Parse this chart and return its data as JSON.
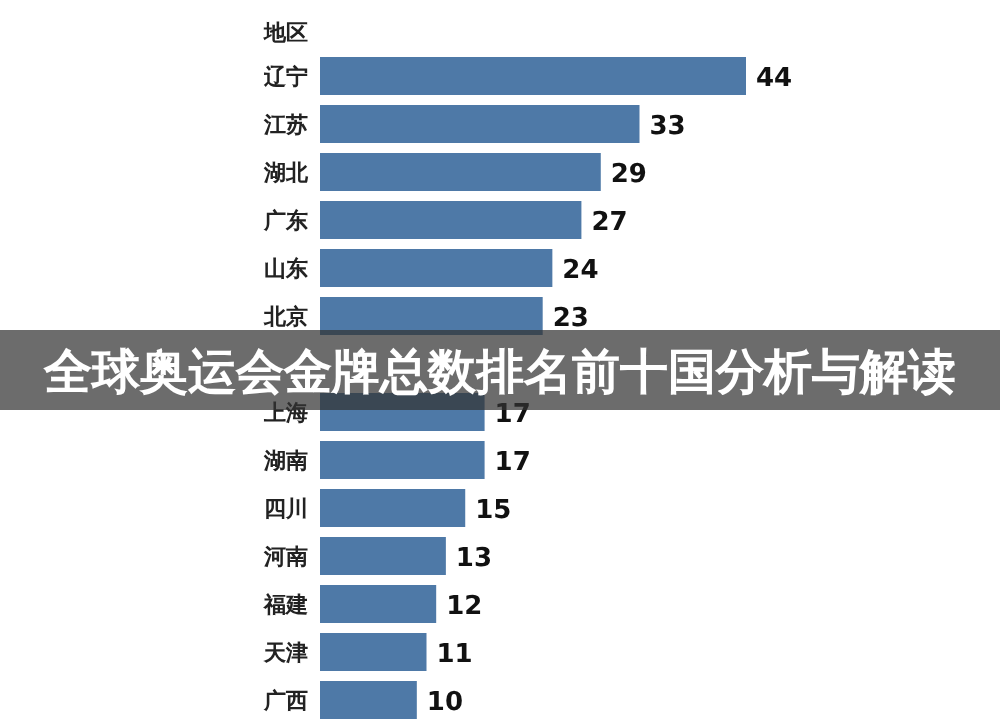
{
  "chart_data": {
    "type": "bar",
    "orientation": "horizontal",
    "title": "全球奥运会金牌总数排名前十国分析与解读",
    "ylabel": "地区",
    "categories": [
      "辽宁",
      "江苏",
      "湖北",
      "广东",
      "山东",
      "北京",
      null,
      "上海",
      "湖南",
      "四川",
      "河南",
      "福建",
      "天津",
      "广西"
    ],
    "values": [
      44,
      33,
      29,
      27,
      24,
      23,
      null,
      17,
      17,
      15,
      13,
      12,
      11,
      10
    ],
    "color": "#4e79a7",
    "data_labels": true
  }
}
